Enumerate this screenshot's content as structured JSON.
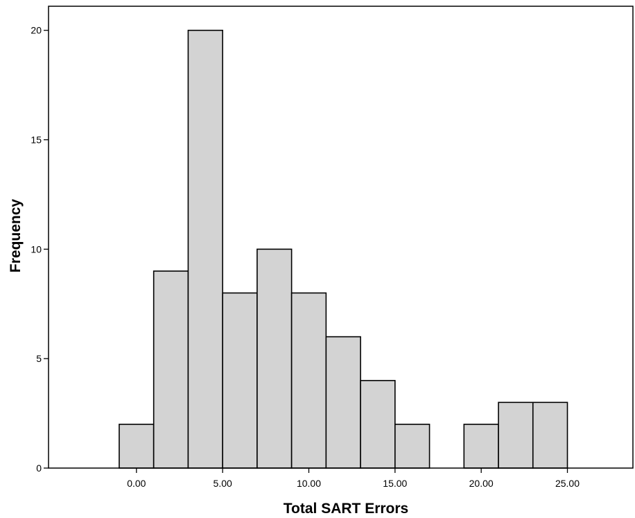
{
  "chart_data": {
    "type": "bar",
    "subtype": "histogram",
    "xlabel": "Total SART Errors",
    "ylabel": "Frequency",
    "bin_width": 2,
    "bins": [
      {
        "from": -1,
        "to": 1,
        "count": 2
      },
      {
        "from": 1,
        "to": 3,
        "count": 9
      },
      {
        "from": 3,
        "to": 5,
        "count": 20
      },
      {
        "from": 5,
        "to": 7,
        "count": 8
      },
      {
        "from": 7,
        "to": 9,
        "count": 10
      },
      {
        "from": 9,
        "to": 11,
        "count": 8
      },
      {
        "from": 11,
        "to": 13,
        "count": 6
      },
      {
        "from": 13,
        "to": 15,
        "count": 4
      },
      {
        "from": 15,
        "to": 17,
        "count": 2
      },
      {
        "from": 17,
        "to": 19,
        "count": 0
      },
      {
        "from": 19,
        "to": 21,
        "count": 2
      },
      {
        "from": 21,
        "to": 23,
        "count": 3
      },
      {
        "from": 23,
        "to": 25,
        "count": 3
      }
    ],
    "x_ticks": [
      {
        "value": 0,
        "label": "0.00"
      },
      {
        "value": 5,
        "label": "5.00"
      },
      {
        "value": 10,
        "label": "10.00"
      },
      {
        "value": 15,
        "label": "15.00"
      },
      {
        "value": 20,
        "label": "20.00"
      },
      {
        "value": 25,
        "label": "25.00"
      }
    ],
    "y_ticks": [
      {
        "value": 0,
        "label": "0"
      },
      {
        "value": 5,
        "label": "5"
      },
      {
        "value": 10,
        "label": "10"
      },
      {
        "value": 15,
        "label": "15"
      },
      {
        "value": 20,
        "label": "20"
      }
    ],
    "xlim": [
      -5.1,
      28.8
    ],
    "ylim": [
      0,
      21.1
    ],
    "bar_color": "#d3d3d3",
    "edge_color": "#000000",
    "grid": false,
    "legend": "none"
  }
}
